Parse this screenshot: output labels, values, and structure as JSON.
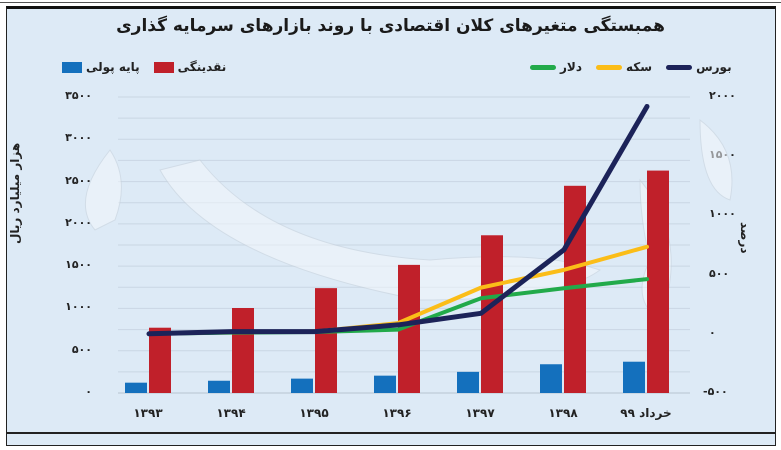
{
  "title": "همبستگی متغیرهای کلان اقتصادی با روند بازارهای سرمایه گذاری",
  "legend": {
    "bars": [
      {
        "label": "نقدینگی",
        "color": "#c0202a"
      },
      {
        "label": "پایه پولی",
        "color": "#1470bd"
      }
    ],
    "lines": [
      {
        "label": "بورس",
        "color": "#1c2359"
      },
      {
        "label": "سکه",
        "color": "#fbbd18"
      },
      {
        "label": "دلار",
        "color": "#22aa4a"
      }
    ]
  },
  "axes": {
    "left_label": "هزار میلیارد ریال",
    "right_label": "درصد",
    "left_ticks": [
      "۳۵۰۰",
      "۳۰۰۰",
      "۲۵۰۰",
      "۲۰۰۰",
      "۱۵۰۰",
      "۱۰۰۰",
      "۵۰۰",
      "۰"
    ],
    "right_ticks": [
      "۲۰۰۰",
      "۱۵۰۰",
      "۱۰۰۰",
      "۵۰۰",
      "۰",
      "-۵۰۰"
    ],
    "x_ticks": [
      "۱۳۹۳",
      "۱۳۹۴",
      "۱۳۹۵",
      "۱۳۹۶",
      "۱۳۹۷",
      "۱۳۹۸",
      "خرداد ۹۹"
    ]
  },
  "chart_data": {
    "type": "bar+line",
    "title": "همبستگی متغیرهای کلان اقتصادی با روند بازارهای سرمایه گذاری",
    "categories": [
      "1393",
      "1394",
      "1395",
      "1396",
      "1397",
      "1398",
      "Khordad 99"
    ],
    "categories_display": [
      "۱۳۹۳",
      "۱۳۹۴",
      "۱۳۹۵",
      "۱۳۹۶",
      "۱۳۹۷",
      "۱۳۹۸",
      "خرداد ۹۹"
    ],
    "ylabel": "هزار میلیارد ریال",
    "ylim": [
      0,
      3500
    ],
    "y2label": "درصد",
    "y2lim": [
      -500,
      2000
    ],
    "grid": true,
    "legend_position": "top",
    "series": [
      {
        "name": "پایه پولی",
        "type": "bar",
        "axis": "left",
        "color": "#1470bd",
        "values": [
          122,
          145,
          170,
          205,
          250,
          340,
          370
        ]
      },
      {
        "name": "نقدینگی",
        "type": "bar",
        "axis": "left",
        "color": "#c0202a",
        "values": [
          772,
          1005,
          1240,
          1515,
          1865,
          2450,
          2630
        ]
      },
      {
        "name": "بورس",
        "type": "line",
        "axis": "right",
        "color": "#1c2359",
        "values": [
          0,
          18,
          18,
          75,
          173,
          710,
          1920
        ]
      },
      {
        "name": "سکه",
        "type": "line",
        "axis": "right",
        "color": "#fbbd18",
        "values": [
          0,
          15,
          20,
          90,
          390,
          540,
          735
        ]
      },
      {
        "name": "دلار",
        "type": "line",
        "axis": "right",
        "color": "#22aa4a",
        "values": [
          0,
          10,
          15,
          35,
          300,
          385,
          462
        ]
      }
    ]
  }
}
